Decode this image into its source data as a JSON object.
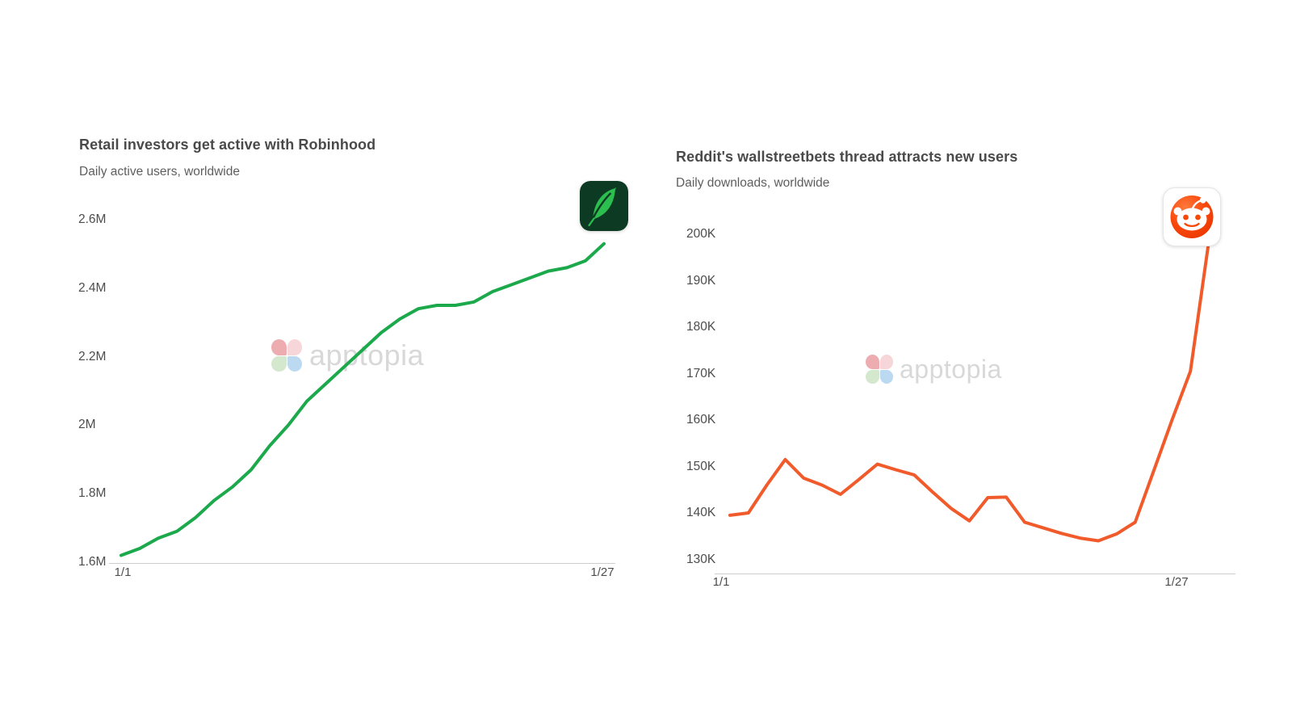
{
  "chart_data": [
    {
      "type": "line",
      "title": "Retail investors get active with Robinhood",
      "subtitle": "Daily active users, worldwide",
      "watermark": "apptopia",
      "icon": "robinhood-app-icon",
      "line_color": "#1CA94C",
      "x_axis": {
        "first_label": "1/1",
        "last_label": "1/27",
        "points": 27
      },
      "y_axis": {
        "min": 1.6,
        "max": 2.6,
        "unit": "M",
        "ticks": [
          "2.6M",
          "2.4M",
          "2.2M",
          "2M",
          "1.8M",
          "1.6M"
        ]
      },
      "values": [
        1.62,
        1.64,
        1.67,
        1.69,
        1.73,
        1.78,
        1.82,
        1.87,
        1.94,
        2.0,
        2.07,
        2.12,
        2.17,
        2.22,
        2.27,
        2.31,
        2.34,
        2.35,
        2.35,
        2.36,
        2.39,
        2.41,
        2.43,
        2.45,
        2.46,
        2.48,
        2.53
      ]
    },
    {
      "type": "line",
      "title": "Reddit's wallstreetbets thread attracts new users",
      "subtitle": "Daily downloads, worldwide",
      "watermark": "apptopia",
      "icon": "reddit-app-icon",
      "line_color": "#F15B2B",
      "x_axis": {
        "first_label": "1/1",
        "last_label": "1/27",
        "points": 27
      },
      "y_axis": {
        "min": 130,
        "max": 200,
        "unit": "K",
        "ticks": [
          "200K",
          "190K",
          "180K",
          "170K",
          "160K",
          "150K",
          "140K",
          "130K"
        ]
      },
      "values": [
        139.5,
        140,
        146,
        151.5,
        147.5,
        146,
        144,
        147.2,
        150.5,
        149.3,
        148.2,
        144.5,
        141,
        138.3,
        143.3,
        143.4,
        138,
        136.8,
        135.6,
        134.6,
        134,
        135.5,
        138,
        149,
        160,
        170.5,
        198.5
      ]
    }
  ]
}
